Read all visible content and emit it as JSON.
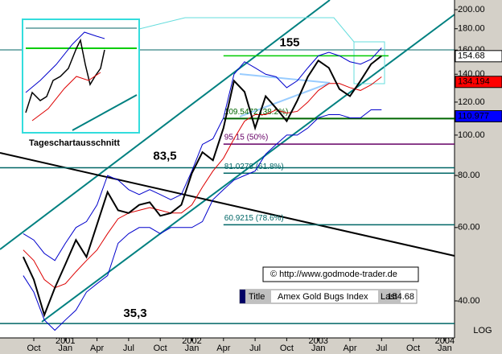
{
  "chart_data": {
    "type": "line",
    "log_scale": true,
    "ylim": [
      32.6,
      211
    ],
    "yticks": [
      {
        "value": 40,
        "label": "40.00"
      },
      {
        "value": 60,
        "label": "60.00"
      },
      {
        "value": 80,
        "label": "80.00"
      },
      {
        "value": 100,
        "label": "100.00"
      },
      {
        "value": 120,
        "label": "120.00"
      },
      {
        "value": 140,
        "label": "140.00"
      },
      {
        "value": 160,
        "label": "160.00"
      },
      {
        "value": 180,
        "label": "180.00"
      },
      {
        "value": 200,
        "label": "200.00"
      }
    ],
    "xticks": [
      {
        "value": "2000-10",
        "label": "Oct"
      },
      {
        "value": "2001-01",
        "label": "Jan"
      },
      {
        "value": "2001-04",
        "label": "Apr"
      },
      {
        "value": "2001-07",
        "label": "Jul"
      },
      {
        "value": "2001-10",
        "label": "Oct"
      },
      {
        "value": "2002-01",
        "label": "Jan"
      },
      {
        "value": "2002-04",
        "label": "Apr"
      },
      {
        "value": "2002-07",
        "label": "Jul"
      },
      {
        "value": "2002-10",
        "label": "Oct"
      },
      {
        "value": "2003-01",
        "label": "Jan"
      },
      {
        "value": "2003-04",
        "label": "Apr"
      },
      {
        "value": "2003-07",
        "label": "Jul"
      },
      {
        "value": "2003-10",
        "label": "Oct"
      },
      {
        "value": "2004-01",
        "label": "Jan"
      }
    ],
    "year_ticks": [
      {
        "value": "2001-01",
        "label": "2001"
      },
      {
        "value": "2002-01",
        "label": "2002"
      },
      {
        "value": "2003-01",
        "label": "2003"
      },
      {
        "value": "2004-01",
        "label": "2004"
      }
    ],
    "scale_label": "LOG",
    "x": [
      "2000-09",
      "2000-10",
      "2000-11",
      "2000-12",
      "2001-01",
      "2001-02",
      "2001-03",
      "2001-04",
      "2001-05",
      "2001-06",
      "2001-07",
      "2001-08",
      "2001-09",
      "2001-10",
      "2001-11",
      "2001-12",
      "2002-01",
      "2002-02",
      "2002-03",
      "2002-04",
      "2002-05",
      "2002-06",
      "2002-07",
      "2002-08",
      "2002-09",
      "2002-10",
      "2002-11",
      "2002-12",
      "2003-01",
      "2003-02",
      "2003-03",
      "2003-04",
      "2003-05",
      "2003-06",
      "2003-07"
    ],
    "series": [
      {
        "color": "#0000cc",
        "values": [
          58,
          56,
          52,
          50,
          55,
          60,
          62,
          68,
          80,
          78,
          74,
          72,
          74,
          72,
          70,
          72,
          82,
          95,
          98,
          110,
          140,
          150,
          145,
          140,
          138,
          130,
          135,
          145,
          155,
          158,
          155,
          150,
          148,
          152,
          162
        ]
      },
      {
        "color": "#0000cc",
        "values": [
          46,
          42,
          36,
          34,
          36,
          38,
          42,
          44,
          46,
          55,
          58,
          60,
          60,
          58,
          60,
          60,
          60,
          62,
          70,
          74,
          78,
          80,
          82,
          90,
          95,
          100,
          100,
          104,
          110,
          112,
          112,
          110,
          110,
          115,
          115
        ]
      },
      {
        "color": "#dd0000",
        "values": [
          53,
          50,
          45,
          43,
          44,
          47,
          50,
          53,
          58,
          63,
          65,
          66,
          67,
          66,
          65,
          65,
          68,
          75,
          82,
          88,
          98,
          108,
          112,
          112,
          115,
          113,
          114,
          120,
          128,
          133,
          133,
          130,
          128,
          132,
          138
        ]
      },
      {
        "color": "#000000",
        "values": [
          51,
          45,
          37,
          43,
          49,
          56,
          51,
          61,
          73,
          66,
          65,
          68,
          69,
          64,
          65,
          68,
          81,
          91,
          87,
          104,
          135,
          127,
          104,
          124,
          116,
          108,
          121,
          138,
          151,
          145,
          129,
          124,
          135,
          148,
          155
        ]
      }
    ],
    "levels": [
      {
        "value": 155,
        "label": "155",
        "color": "#00cc00",
        "start": "2002-04"
      },
      {
        "value": 109.5472,
        "label": "109.5472 (38.2%)",
        "color": "#006600",
        "start": "2002-04"
      },
      {
        "value": 95.15,
        "label": "95.15 (50%)",
        "color": "#660066",
        "start": "2002-04"
      },
      {
        "value": 83.5,
        "label": "83,5",
        "color": "#006666"
      },
      {
        "value": 81.0278,
        "label": "81.0278 (61.8%)",
        "color": "#006666",
        "start": "2002-04"
      },
      {
        "value": 60.9215,
        "label": "60.9215 (78.6%)",
        "color": "#006666",
        "start": "2002-04"
      },
      {
        "value": 35.3,
        "label": "35,3",
        "color": "#006666"
      }
    ],
    "price_labels": [
      {
        "value": 154.68,
        "label": "154.68",
        "color": "#ffffff"
      },
      {
        "value": 134.194,
        "label": "134.194",
        "color": "#ff0000"
      },
      {
        "value": 110.977,
        "label": "110.977",
        "color": "#0000ff"
      }
    ],
    "inset_label": "Tageschartausschnitt",
    "copyright": "© http://www.godmode-trader.de",
    "info": {
      "title_key": "Title",
      "title": "Amex Gold Bugs Index",
      "last_key": "Last",
      "last": "154.68"
    }
  }
}
